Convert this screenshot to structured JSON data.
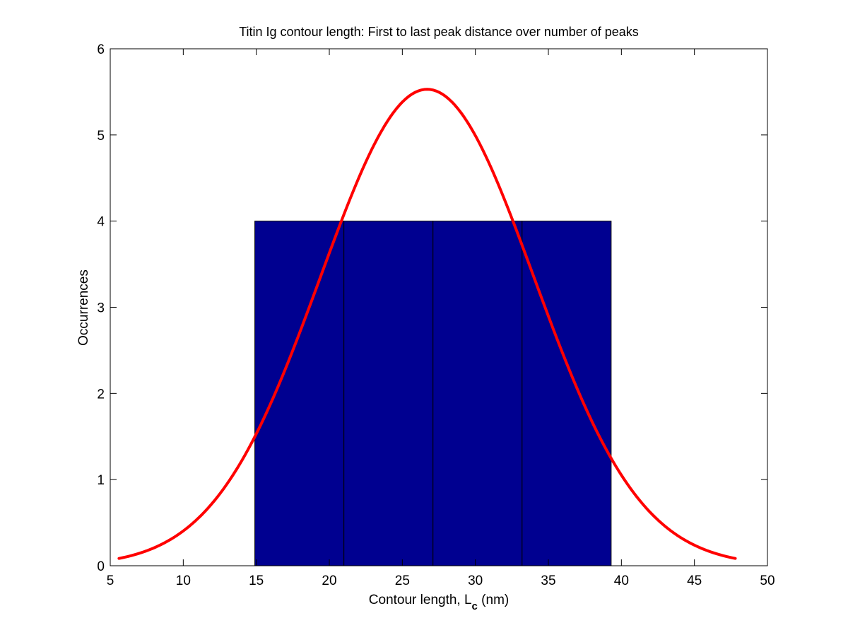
{
  "chart_data": {
    "type": "bar",
    "title": "Titin Ig contour length: First to last peak distance over number of peaks",
    "xlabel": "Contour length, L",
    "xlabel_subscript": "c",
    "xlabel_unit": " (nm)",
    "ylabel": "Occurrences",
    "xlim": [
      5,
      50
    ],
    "ylim": [
      0,
      6
    ],
    "x_ticks": [
      5,
      10,
      15,
      20,
      25,
      30,
      35,
      40,
      45,
      50
    ],
    "y_ticks": [
      0,
      1,
      2,
      3,
      4,
      5,
      6
    ],
    "grid": false,
    "legend": "none",
    "bars": [
      {
        "x_start": 14.9,
        "x_end": 21.0,
        "value": 4
      },
      {
        "x_start": 21.0,
        "x_end": 27.1,
        "value": 4
      },
      {
        "x_start": 27.1,
        "x_end": 33.2,
        "value": 4
      },
      {
        "x_start": 33.2,
        "x_end": 39.3,
        "value": 4
      }
    ],
    "fit_curve": {
      "type": "gaussian",
      "mean": 26.7,
      "peak": 5.53,
      "sigma": 7.3,
      "x_range": [
        5.6,
        47.8
      ]
    },
    "colors": {
      "bar_fill": "#000090",
      "bar_edge": "#000000",
      "curve": "#ff0000"
    }
  }
}
